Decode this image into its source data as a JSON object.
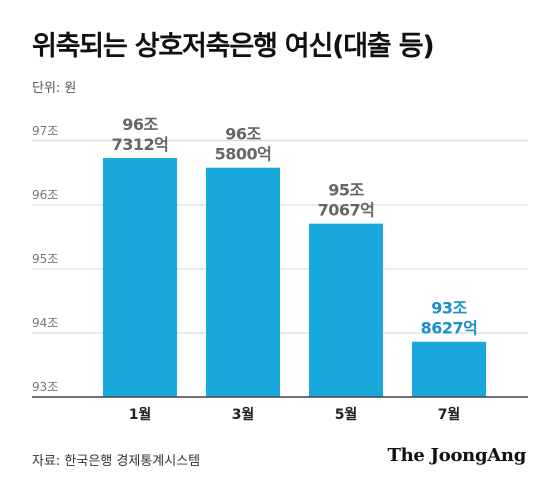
{
  "title": "위축되는 상호저축은행 여신(대출 등)",
  "unit_label": "단위: 원",
  "source": "자료: 한국은행 경제통계시스템",
  "brand": "The JoongAng",
  "colors": {
    "bar": "#1aa7dc",
    "highlight_label": "#1b8fcc",
    "label": "#666666",
    "grid": "#d6d6d6",
    "axis": "#444444"
  },
  "chart_data": {
    "type": "bar",
    "categories": [
      "1월",
      "3월",
      "5월",
      "7월"
    ],
    "values": [
      967312,
      965800,
      957067,
      938627
    ],
    "value_labels": [
      [
        "96조",
        "7312억"
      ],
      [
        "96조",
        "5800억"
      ],
      [
        "95조",
        "7067억"
      ],
      [
        "93조",
        "8627억"
      ]
    ],
    "highlight_index": 3,
    "yticks": [
      930000,
      940000,
      950000,
      960000,
      970000
    ],
    "ytick_labels": [
      "93조",
      "94조",
      "95조",
      "96조",
      "97조"
    ],
    "ylim": [
      930000,
      972000
    ],
    "ylabel": "",
    "xlabel": "",
    "grid": true
  }
}
